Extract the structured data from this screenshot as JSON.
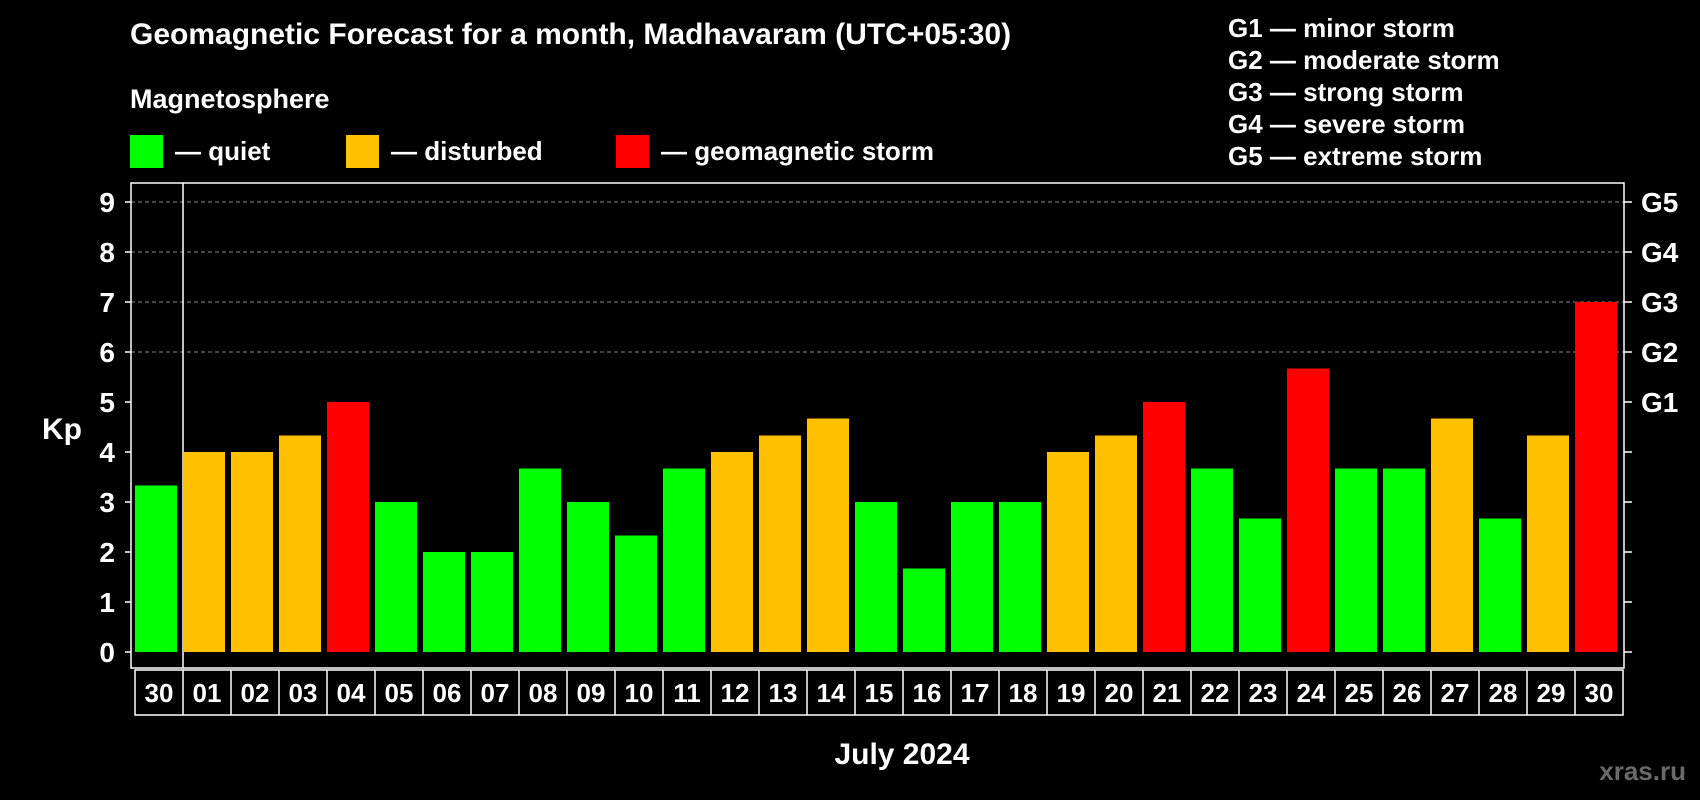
{
  "title": "Geomagnetic Forecast for a month, Madhavaram (UTC+05:30)",
  "subtitle": "Magnetosphere",
  "legend": [
    {
      "label": "— quiet",
      "color": "#00ff00"
    },
    {
      "label": "— disturbed",
      "color": "#ffc000"
    },
    {
      "label": "— geomagnetic storm",
      "color": "#ff0000"
    }
  ],
  "g_scale": [
    "G1 — minor storm",
    "G2 — moderate storm",
    "G3 — strong storm",
    "G4 — severe storm",
    "G5 — extreme storm"
  ],
  "watermark": "xras.ru",
  "chart_data": {
    "type": "bar",
    "ylabel": "Kp",
    "xlabel": "July 2024",
    "ylim": [
      0,
      9
    ],
    "y_ticks": [
      "0",
      "1",
      "2",
      "3",
      "4",
      "5",
      "6",
      "7",
      "8",
      "9"
    ],
    "right_ticks": [
      {
        "value": 5,
        "label": "G1"
      },
      {
        "value": 6,
        "label": "G2"
      },
      {
        "value": 7,
        "label": "G3"
      },
      {
        "value": 8,
        "label": "G4"
      },
      {
        "value": 9,
        "label": "G5"
      }
    ],
    "grid_lines": [
      6,
      7,
      8,
      9
    ],
    "categories": [
      "30",
      "01",
      "02",
      "03",
      "04",
      "05",
      "06",
      "07",
      "08",
      "09",
      "10",
      "11",
      "12",
      "13",
      "14",
      "15",
      "16",
      "17",
      "18",
      "19",
      "20",
      "21",
      "22",
      "23",
      "24",
      "25",
      "26",
      "27",
      "28",
      "29",
      "30"
    ],
    "values": [
      3.33,
      4.0,
      4.0,
      4.33,
      5.0,
      3.0,
      2.0,
      2.0,
      3.67,
      3.0,
      2.33,
      3.67,
      4.0,
      4.33,
      4.67,
      3.0,
      1.67,
      3.0,
      3.0,
      4.0,
      4.33,
      5.0,
      3.67,
      2.67,
      5.67,
      3.67,
      3.67,
      4.67,
      2.67,
      4.33,
      7.0
    ],
    "status": [
      "quiet",
      "disturbed",
      "disturbed",
      "disturbed",
      "storm",
      "quiet",
      "quiet",
      "quiet",
      "quiet",
      "quiet",
      "quiet",
      "quiet",
      "disturbed",
      "disturbed",
      "disturbed",
      "quiet",
      "quiet",
      "quiet",
      "quiet",
      "disturbed",
      "disturbed",
      "storm",
      "quiet",
      "quiet",
      "storm",
      "quiet",
      "quiet",
      "disturbed",
      "quiet",
      "disturbed",
      "storm"
    ],
    "colors": {
      "quiet": "#00ff00",
      "disturbed": "#ffc000",
      "storm": "#ff0000"
    }
  }
}
